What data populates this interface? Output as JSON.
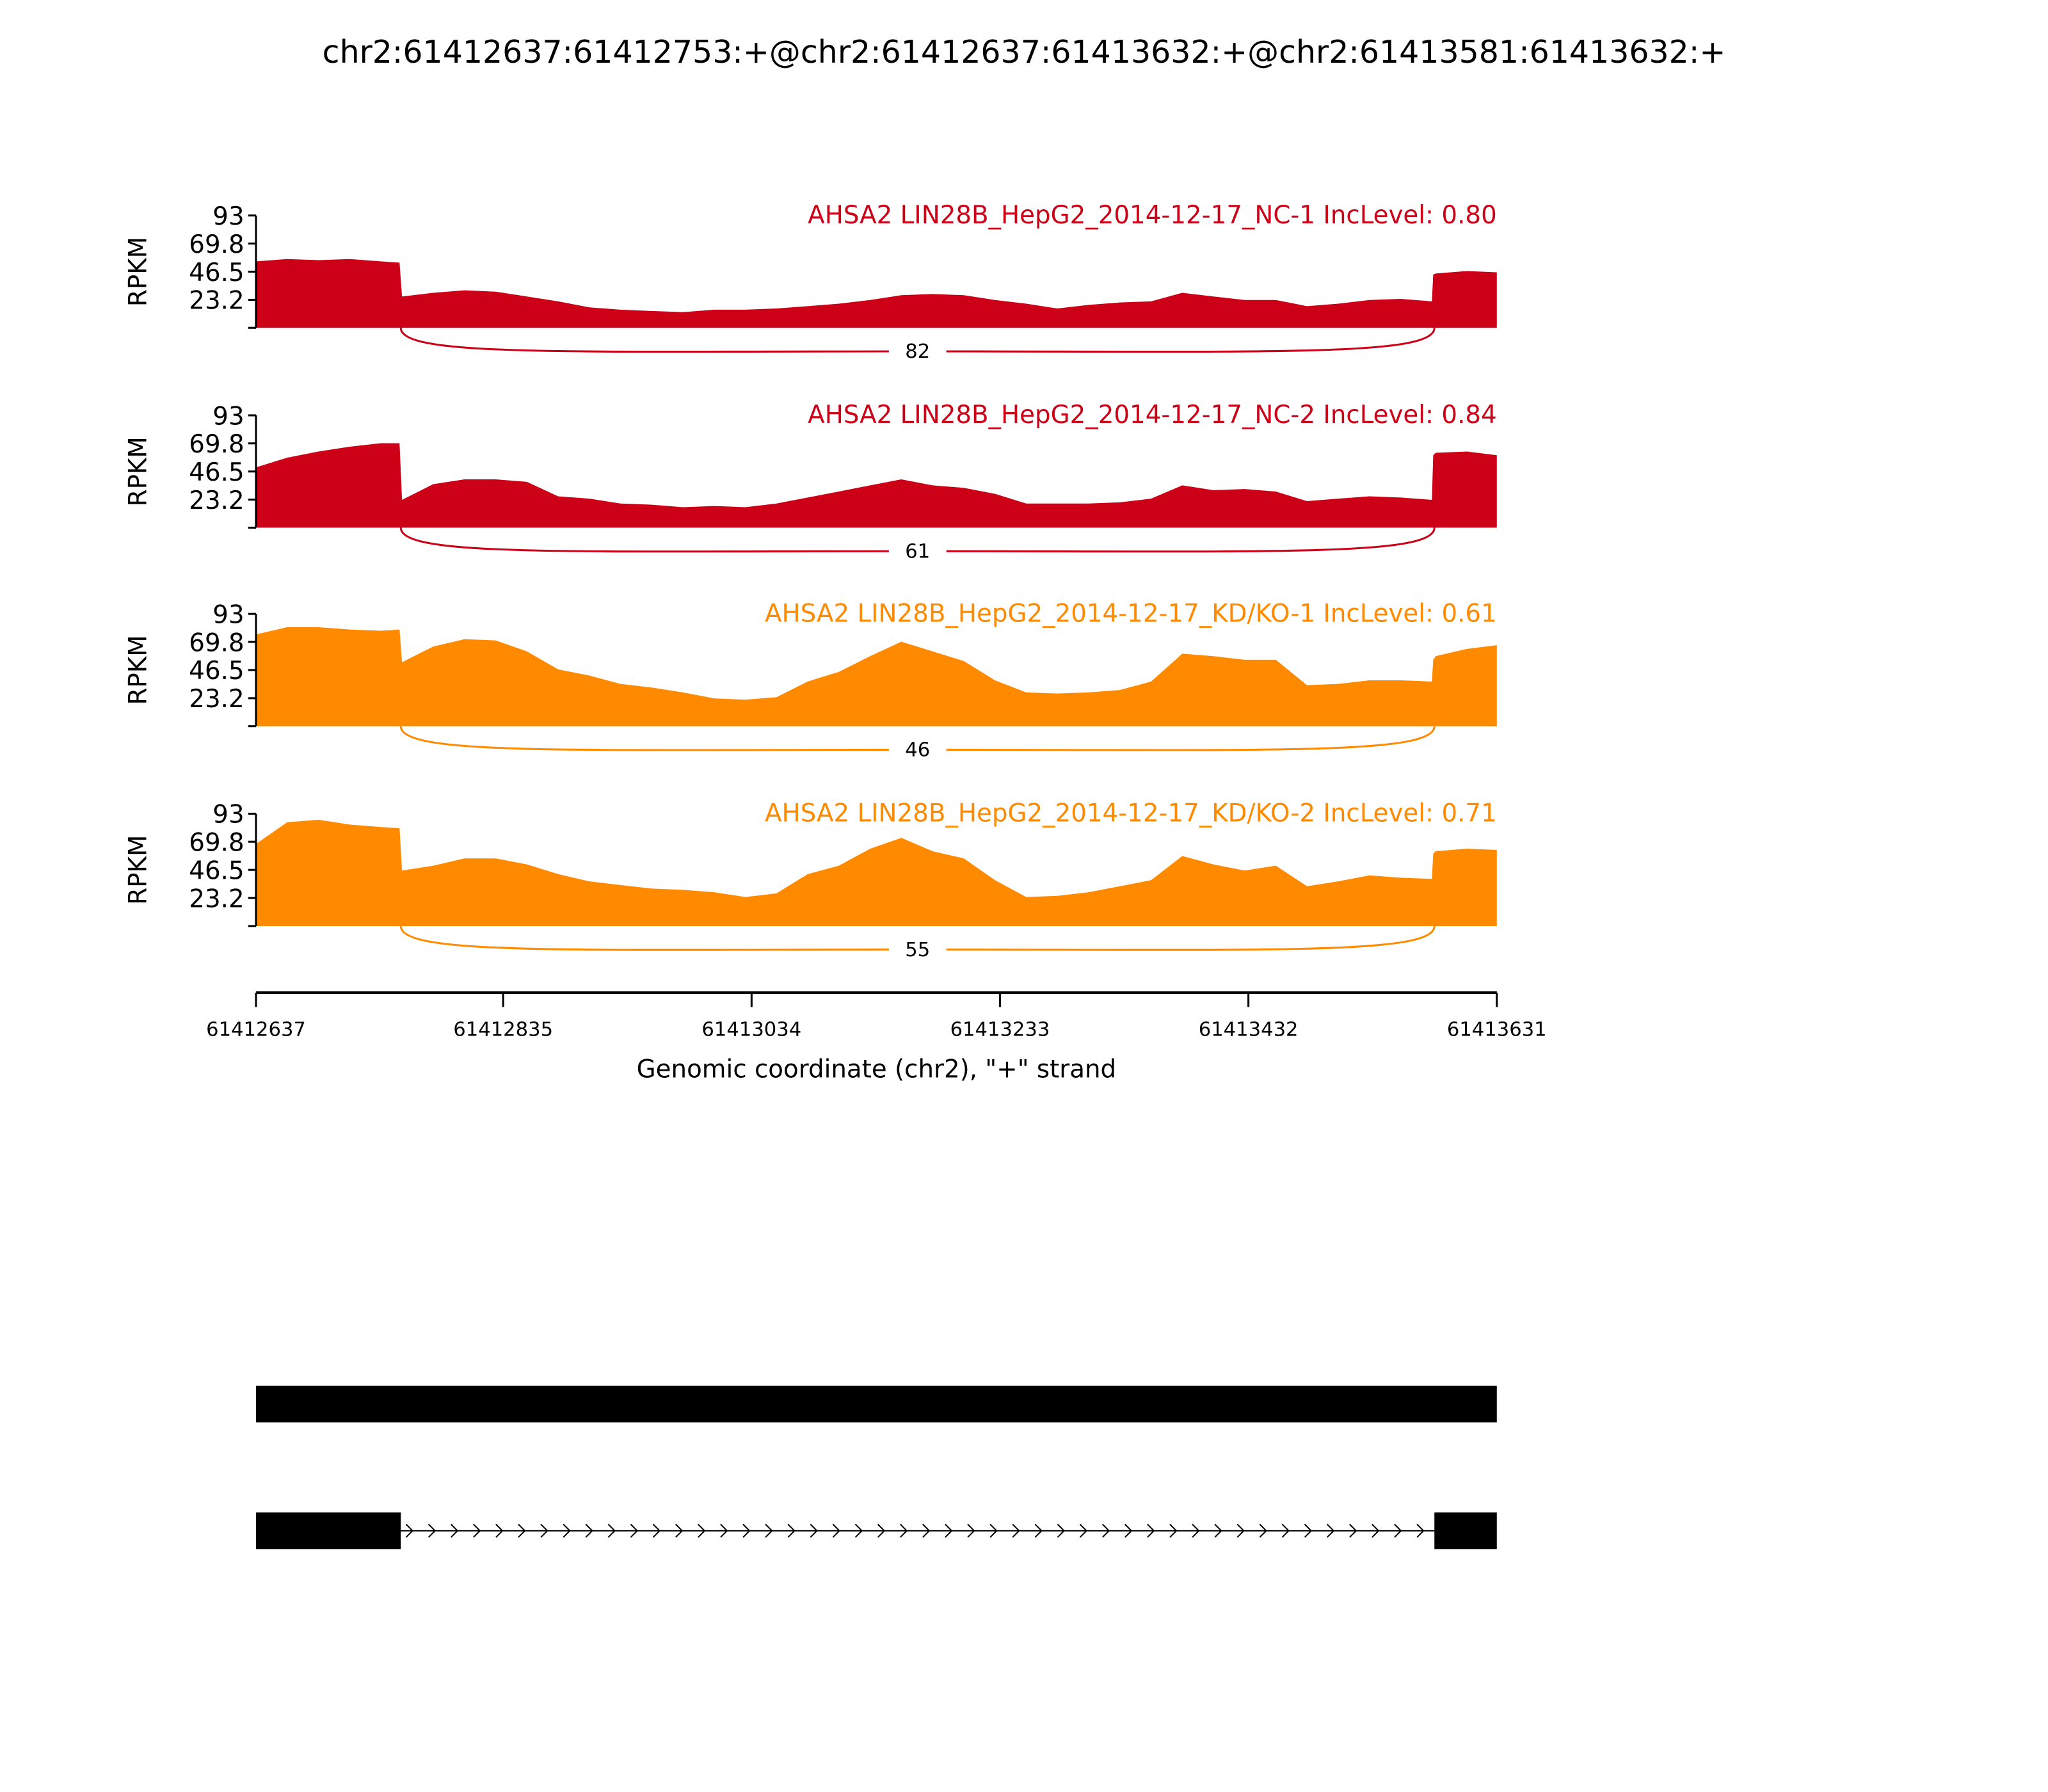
{
  "chart_data": {
    "type": "area",
    "title": "chr2:61412637:61412753:+@chr2:61412637:61413632:+@chr2:61413581:61413632:+",
    "xlabel": "Genomic coordinate (chr2), \"+\" strand",
    "ylabel": "RPKM",
    "xlim": [
      61412637,
      61413631
    ],
    "ylim": [
      0,
      93
    ],
    "yticks": [
      "93",
      "69.8",
      "46.5",
      "23.2"
    ],
    "xticks": [
      "61412637",
      "61412835",
      "61413034",
      "61413233",
      "61413432",
      "61413631"
    ],
    "junction": {
      "start": 61412753,
      "end": 61413581
    },
    "positions": [
      61412637,
      61412662,
      61412687,
      61412712,
      61412737,
      61412752,
      61412754,
      61412779,
      61412804,
      61412829,
      61412854,
      61412879,
      61412904,
      61412929,
      61412954,
      61412979,
      61413004,
      61413029,
      61413054,
      61413079,
      61413104,
      61413129,
      61413154,
      61413179,
      61413204,
      61413229,
      61413254,
      61413279,
      61413304,
      61413329,
      61413354,
      61413379,
      61413404,
      61413429,
      61413454,
      61413479,
      61413504,
      61413529,
      61413554,
      61413579,
      61413580,
      61413582,
      61413607,
      61413632
    ],
    "series": [
      {
        "name": "AHSA2 LIN28B_HepG2_2014-12-17_NC-1 IncLevel: 0.80",
        "color": "#cc0016",
        "junction_count": "82",
        "values": [
          55,
          57,
          56,
          57,
          55,
          54,
          26,
          29,
          31,
          30,
          26,
          22,
          17,
          15,
          14,
          13,
          15,
          15,
          16,
          18,
          20,
          23,
          27,
          28,
          27,
          23,
          20,
          16,
          19,
          21,
          22,
          29,
          26,
          23,
          23,
          18,
          20,
          23,
          24,
          22,
          44,
          45,
          47,
          46
        ]
      },
      {
        "name": "AHSA2 LIN28B_HepG2_2014-12-17_NC-2 IncLevel: 0.84",
        "color": "#cc0016",
        "junction_count": "61",
        "values": [
          50,
          58,
          63,
          67,
          70,
          70,
          23,
          36,
          40,
          40,
          38,
          26,
          24,
          20,
          19,
          17,
          18,
          17,
          20,
          25,
          30,
          35,
          40,
          35,
          33,
          28,
          20,
          20,
          20,
          21,
          24,
          35,
          31,
          32,
          30,
          22,
          24,
          26,
          25,
          23,
          60,
          62,
          63,
          60
        ]
      },
      {
        "name": "AHSA2 LIN28B_HepG2_2014-12-17_KD/KO-1 IncLevel: 0.61",
        "color": "#ff8a00",
        "junction_count": "46",
        "values": [
          76,
          82,
          82,
          80,
          79,
          80,
          53,
          66,
          72,
          71,
          62,
          47,
          42,
          35,
          32,
          28,
          23,
          22,
          24,
          37,
          45,
          58,
          70,
          62,
          54,
          38,
          28,
          27,
          28,
          30,
          37,
          60,
          58,
          55,
          55,
          34,
          35,
          38,
          38,
          37,
          55,
          58,
          64,
          67
        ]
      },
      {
        "name": "AHSA2 LIN28B_HepG2_2014-12-17_KD/KO-2 IncLevel: 0.71",
        "color": "#ff8a00",
        "junction_count": "55",
        "values": [
          68,
          86,
          88,
          84,
          82,
          81,
          46,
          50,
          56,
          56,
          51,
          43,
          37,
          34,
          31,
          30,
          28,
          24,
          27,
          43,
          50,
          64,
          73,
          62,
          56,
          38,
          24,
          25,
          28,
          33,
          38,
          58,
          51,
          46,
          50,
          33,
          37,
          42,
          40,
          39,
          60,
          62,
          64,
          63
        ]
      }
    ],
    "gene_models": [
      {
        "exons": [
          [
            61412637,
            61413632
          ]
        ]
      },
      {
        "exons": [
          [
            61412637,
            61412753
          ],
          [
            61413581,
            61413632
          ]
        ],
        "strand": "+"
      }
    ]
  }
}
